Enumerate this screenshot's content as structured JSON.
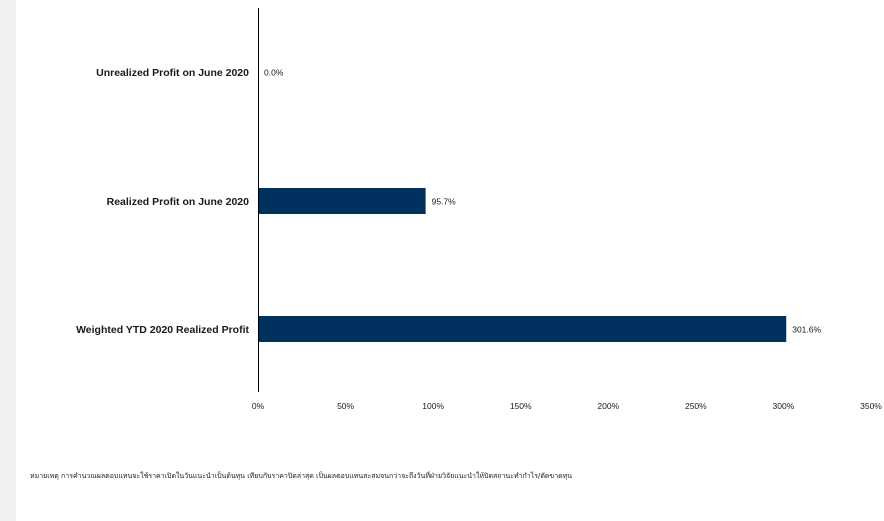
{
  "chart_data": {
    "type": "bar",
    "orientation": "horizontal",
    "categories": [
      "Unrealized Profit on June 2020",
      "Realized Profit on June 2020",
      "Weighted YTD 2020  Realized Profit"
    ],
    "values": [
      0.0,
      95.7,
      301.6
    ],
    "value_labels": [
      "0.0%",
      "95.7%",
      "301.6%"
    ],
    "xlim": [
      0,
      350
    ],
    "xticks": [
      0,
      50,
      100,
      150,
      200,
      250,
      300,
      350
    ],
    "xtick_labels": [
      "0%",
      "50%",
      "100%",
      "150%",
      "200%",
      "250%",
      "300%",
      "350%"
    ],
    "bar_color": "#00305e",
    "grid": false,
    "legend": "none",
    "title": "",
    "xlabel": "",
    "ylabel": ""
  },
  "footnote": "หมายเหตุ การคำนวณผลตอบแทนจะใช้ราคาเปิดในวันแนะนำเป็นต้นทุน เทียบกับราคาปิดล่าสุด เป็นผลตอบแทนสะสมจนกว่าจะถึงวันที่ฝ่ายวิจัยแนะนำให้ปิดสถานะทำกำไร/ตัดขาดทุน"
}
